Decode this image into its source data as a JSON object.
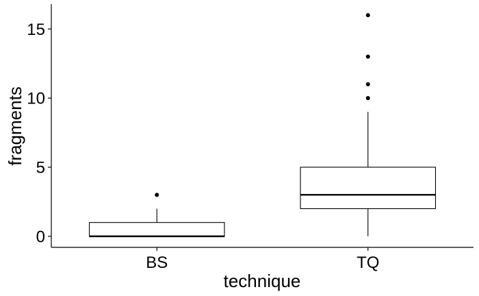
{
  "chart_data": {
    "type": "box",
    "title": "",
    "xlabel": "technique",
    "ylabel": "fragments",
    "ylim": [
      -0.8,
      16.8
    ],
    "yticks": [
      0,
      5,
      10,
      15
    ],
    "grid": false,
    "legend": "none",
    "box_fill": "#ffffff",
    "box_stroke": "#000000",
    "categories": [
      "BS",
      "TQ"
    ],
    "boxes": [
      {
        "category": "BS",
        "whisker_low": 0,
        "q1": 0,
        "median": 0,
        "q3": 1,
        "whisker_high": 2,
        "outliers": [
          3
        ]
      },
      {
        "category": "TQ",
        "whisker_low": 0,
        "q1": 2,
        "median": 3,
        "q3": 5,
        "whisker_high": 9,
        "outliers": [
          10,
          11,
          13,
          16
        ]
      }
    ]
  }
}
